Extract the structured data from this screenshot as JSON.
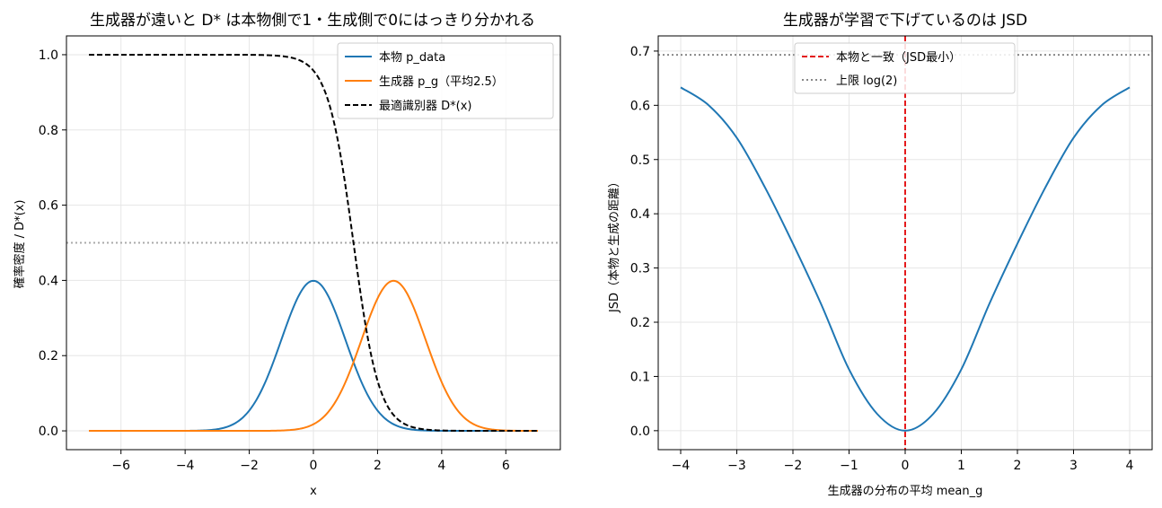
{
  "chart_data": [
    {
      "type": "line",
      "title": "生成器が遠いと D* は本物側で1・生成側で0にはっきり分かれる",
      "xlabel": "x",
      "ylabel": "確率密度 / D*(x)",
      "xlim": [
        -7.7,
        7.7
      ],
      "ylim": [
        -0.05,
        1.05
      ],
      "xticks": [
        -6,
        -4,
        -2,
        0,
        2,
        4,
        6
      ],
      "xtick_labels": [
        "−6",
        "−4",
        "−2",
        "0",
        "2",
        "4",
        "6"
      ],
      "yticks": [
        0.0,
        0.2,
        0.4,
        0.6,
        0.8,
        1.0
      ],
      "ytick_labels": [
        "0.0",
        "0.2",
        "0.4",
        "0.6",
        "0.8",
        "1.0"
      ],
      "grid": true,
      "legend_position": "top-right",
      "x_range": [
        -7,
        7
      ],
      "series": [
        {
          "name": "本物 p_data",
          "kind": "normal_pdf",
          "mean": 0,
          "std": 1,
          "color": "#1f77b4",
          "dash": "solid"
        },
        {
          "name": "生成器 p_g（平均2.5）",
          "kind": "normal_pdf",
          "mean": 2.5,
          "std": 1,
          "color": "#ff7f0e",
          "dash": "solid"
        },
        {
          "name": "最適識別器 D*(x)",
          "kind": "optimal_discriminator",
          "real_mean": 0,
          "gen_mean": 2.5,
          "std": 1,
          "color": "#000000",
          "dash": "dashed"
        }
      ],
      "reference_lines": [
        {
          "axis": "y",
          "value": 0.5,
          "color": "#aaaaaa",
          "style": "dotted"
        }
      ]
    },
    {
      "type": "line",
      "title": "生成器が学習で下げているのは JSD",
      "xlabel": "生成器の分布の平均 mean_g",
      "ylabel": "JSD（本物と生成の距離）",
      "xlim": [
        -4.4,
        4.4
      ],
      "ylim": [
        -0.035,
        0.728
      ],
      "xticks": [
        -4,
        -3,
        -2,
        -1,
        0,
        1,
        2,
        3,
        4
      ],
      "xtick_labels": [
        "−4",
        "−3",
        "−2",
        "−1",
        "0",
        "1",
        "2",
        "3",
        "4"
      ],
      "yticks": [
        0.0,
        0.1,
        0.2,
        0.3,
        0.4,
        0.5,
        0.6,
        0.7
      ],
      "ytick_labels": [
        "0.0",
        "0.1",
        "0.2",
        "0.3",
        "0.4",
        "0.5",
        "0.6",
        "0.7"
      ],
      "grid": true,
      "legend_position": "top-center",
      "series": [
        {
          "name": "",
          "kind": "jsd_curve",
          "x_range": [
            -4,
            4
          ],
          "color": "#1f77b4",
          "dash": "solid",
          "x": [
            -4,
            -3.5,
            -3,
            -2.5,
            -2,
            -1.5,
            -1,
            -0.5,
            0,
            0.5,
            1,
            1.5,
            2,
            2.5,
            3,
            3.5,
            4
          ],
          "y": [
            0.633,
            0.6,
            0.54,
            0.449,
            0.345,
            0.234,
            0.113,
            0.031,
            0.0,
            0.031,
            0.113,
            0.234,
            0.345,
            0.449,
            0.54,
            0.6,
            0.633
          ]
        }
      ],
      "reference_lines": [
        {
          "name": "本物と一致（JSD最小）",
          "axis": "x",
          "value": 0,
          "color": "#e41a1c",
          "style": "dashed"
        },
        {
          "name": "上限 log(2)",
          "axis": "y",
          "value": 0.693,
          "color": "#888888",
          "style": "dotted"
        }
      ]
    }
  ]
}
